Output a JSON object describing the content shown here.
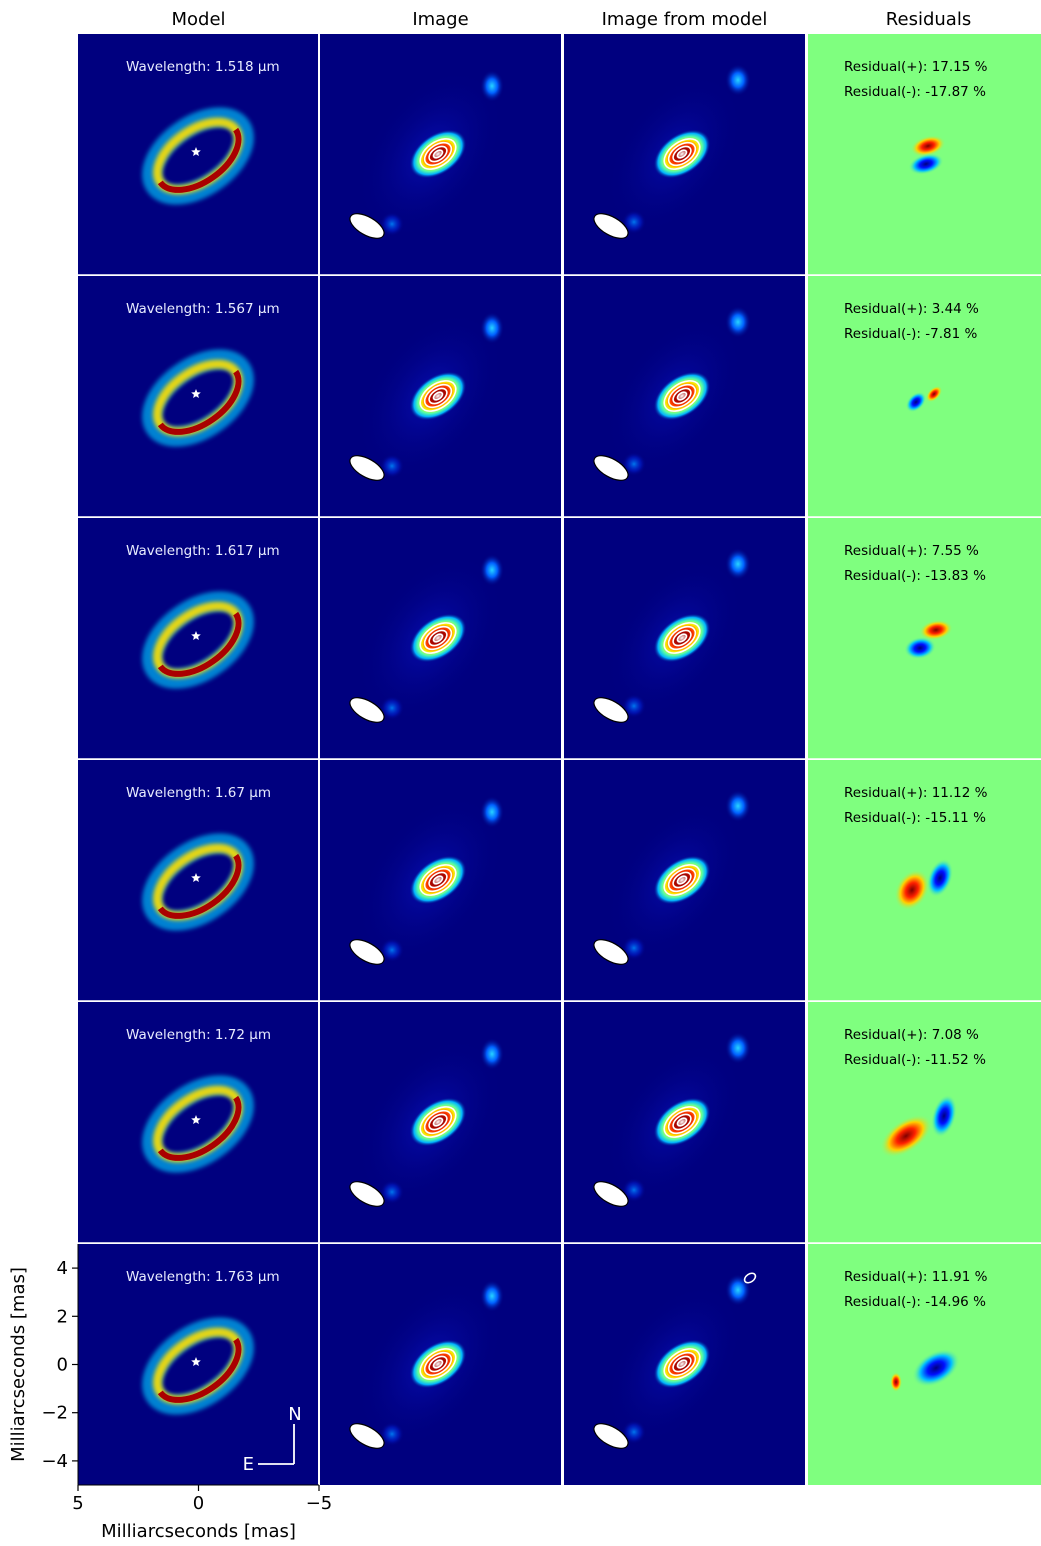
{
  "figure": {
    "columns": [
      "Model",
      "Image",
      "Image from model",
      "Residuals"
    ],
    "xlabel": "Milliarcseconds [mas]",
    "ylabel": "Milliarcseconds [mas]",
    "compass": {
      "north": "N",
      "east": "E"
    },
    "colors": {
      "background_navy": "#00007f",
      "residual_green": "#7fff7f",
      "text_light": "#e8ecff",
      "text_dark": "#000000",
      "separator": "#ffffff"
    }
  },
  "chart_data": {
    "type": "heatmap",
    "xlim": [
      5,
      -5
    ],
    "ylim": [
      -5,
      5
    ],
    "xticks": [
      5,
      0,
      -5
    ],
    "yticks": [
      -4,
      -2,
      0,
      2,
      4
    ],
    "xtick_labels": [
      "5",
      "0",
      "−5"
    ],
    "ytick_labels": [
      "−4",
      "−2",
      "0",
      "2",
      "4"
    ],
    "wavelength_prefix": "Wavelength: ",
    "wavelength_unit": "μm",
    "rows": [
      {
        "wavelength": "1.518",
        "residual_pos": "Residual(+): 17.15 %",
        "residual_neg": "Residual(-): -17.87 %"
      },
      {
        "wavelength": "1.567",
        "residual_pos": "Residual(+): 3.44 %",
        "residual_neg": "Residual(-): -7.81 %"
      },
      {
        "wavelength": "1.617",
        "residual_pos": "Residual(+): 7.55 %",
        "residual_neg": "Residual(-): -13.83 %"
      },
      {
        "wavelength": "1.67",
        "residual_pos": "Residual(+): 11.12 %",
        "residual_neg": "Residual(-): -15.11 %"
      },
      {
        "wavelength": "1.72",
        "residual_pos": "Residual(+): 7.08 %",
        "residual_neg": "Residual(-): -11.52 %"
      },
      {
        "wavelength": "1.763",
        "residual_pos": "Residual(+): 11.91 %",
        "residual_neg": "Residual(-): -14.96 %"
      }
    ]
  }
}
